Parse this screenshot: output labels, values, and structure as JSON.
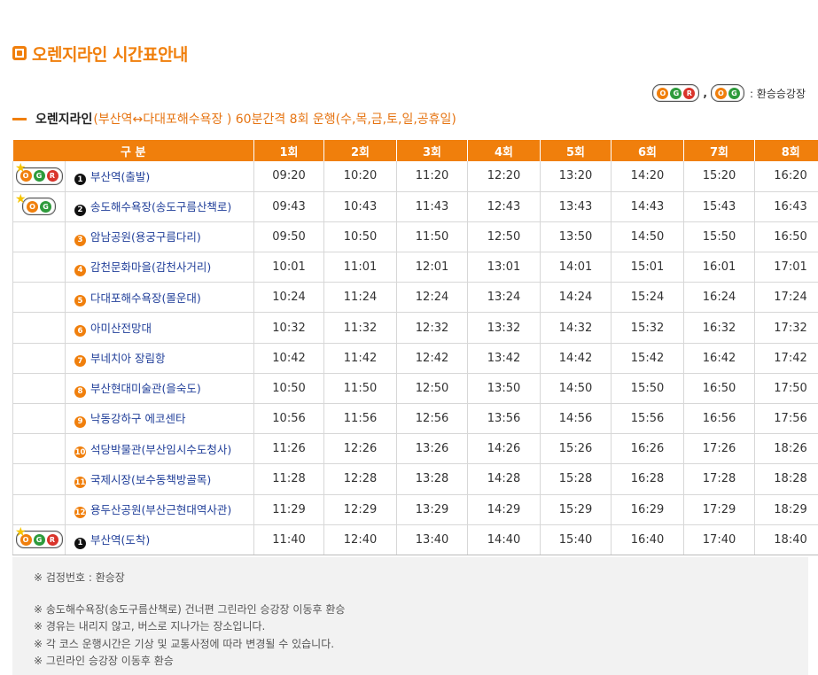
{
  "page": {
    "title": "오렌지라인 시간표안내"
  },
  "legend": {
    "pill_a": [
      "O",
      "G",
      "R"
    ],
    "separator": ",",
    "pill_b": [
      "O",
      "G"
    ],
    "text": ": 환승승강장"
  },
  "route": {
    "name": "오렌지라인",
    "description": "(부산역↔다대포해수욕장 ) 60분간격 8회 운행(수,목,금,토,일,공휴일)"
  },
  "table": {
    "headers": [
      "구 분",
      "1회",
      "2회",
      "3회",
      "4회",
      "5회",
      "6회",
      "7회",
      "8회"
    ],
    "rows": [
      {
        "icon": "OGR",
        "star": true,
        "num": "1",
        "num_style": "black",
        "stop": "부산역(출발)",
        "times": [
          "09:20",
          "10:20",
          "11:20",
          "12:20",
          "13:20",
          "14:20",
          "15:20",
          "16:20"
        ]
      },
      {
        "icon": "OG",
        "star": true,
        "num": "2",
        "num_style": "black",
        "stop": "송도해수욕장(송도구름산책로)",
        "times": [
          "09:43",
          "10:43",
          "11:43",
          "12:43",
          "13:43",
          "14:43",
          "15:43",
          "16:43"
        ]
      },
      {
        "icon": "",
        "star": false,
        "num": "3",
        "num_style": "orange",
        "stop": "암남공원(용궁구름다리)",
        "times": [
          "09:50",
          "10:50",
          "11:50",
          "12:50",
          "13:50",
          "14:50",
          "15:50",
          "16:50"
        ]
      },
      {
        "icon": "",
        "star": false,
        "num": "4",
        "num_style": "orange",
        "stop": "감천문화마을(감천사거리)",
        "times": [
          "10:01",
          "11:01",
          "12:01",
          "13:01",
          "14:01",
          "15:01",
          "16:01",
          "17:01"
        ]
      },
      {
        "icon": "",
        "star": false,
        "num": "5",
        "num_style": "orange",
        "stop": "다대포해수욕장(몰운대)",
        "times": [
          "10:24",
          "11:24",
          "12:24",
          "13:24",
          "14:24",
          "15:24",
          "16:24",
          "17:24"
        ]
      },
      {
        "icon": "",
        "star": false,
        "num": "6",
        "num_style": "orange",
        "stop": "아미산전망대",
        "times": [
          "10:32",
          "11:32",
          "12:32",
          "13:32",
          "14:32",
          "15:32",
          "16:32",
          "17:32"
        ]
      },
      {
        "icon": "",
        "star": false,
        "num": "7",
        "num_style": "orange",
        "stop": "부네치아 장림항",
        "times": [
          "10:42",
          "11:42",
          "12:42",
          "13:42",
          "14:42",
          "15:42",
          "16:42",
          "17:42"
        ]
      },
      {
        "icon": "",
        "star": false,
        "num": "8",
        "num_style": "orange",
        "stop": "부산현대미술관(을숙도)",
        "times": [
          "10:50",
          "11:50",
          "12:50",
          "13:50",
          "14:50",
          "15:50",
          "16:50",
          "17:50"
        ]
      },
      {
        "icon": "",
        "star": false,
        "num": "9",
        "num_style": "orange",
        "stop": "낙동강하구 에코센타",
        "times": [
          "10:56",
          "11:56",
          "12:56",
          "13:56",
          "14:56",
          "15:56",
          "16:56",
          "17:56"
        ]
      },
      {
        "icon": "",
        "star": false,
        "num": "10",
        "num_style": "orange",
        "stop": "석당박물관(부산임시수도청사)",
        "times": [
          "11:26",
          "12:26",
          "13:26",
          "14:26",
          "15:26",
          "16:26",
          "17:26",
          "18:26"
        ]
      },
      {
        "icon": "",
        "star": false,
        "num": "11",
        "num_style": "orange",
        "stop": "국제시장(보수동책방골목)",
        "times": [
          "11:28",
          "12:28",
          "13:28",
          "14:28",
          "15:28",
          "16:28",
          "17:28",
          "18:28"
        ]
      },
      {
        "icon": "",
        "star": false,
        "num": "12",
        "num_style": "orange",
        "stop": "용두산공원(부산근현대역사관)",
        "times": [
          "11:29",
          "12:29",
          "13:29",
          "14:29",
          "15:29",
          "16:29",
          "17:29",
          "18:29"
        ]
      },
      {
        "icon": "OGR",
        "star": true,
        "num": "1",
        "num_style": "black",
        "stop": "부산역(도착)",
        "times": [
          "11:40",
          "12:40",
          "13:40",
          "14:40",
          "15:40",
          "16:40",
          "17:40",
          "18:40"
        ]
      }
    ]
  },
  "notes": {
    "first": "※ 검정번호 : 환승장",
    "items": [
      "※ 송도해수욕장(송도구름산책로) 건너편 그린라인 승강장 이동후 환승",
      "※ 경유는 내리지 않고, 버스로 지나가는 장소입니다.",
      "※ 각 코스 운행시간은 기상 및 교통사정에 따라 변경될 수 있습니다.",
      "※ 그린라인 승강장 이동후 환승"
    ]
  },
  "colors": {
    "accent": "#f07f0c",
    "green": "#2e9b3c",
    "red": "#d9342b",
    "stop_text": "#22409a"
  }
}
